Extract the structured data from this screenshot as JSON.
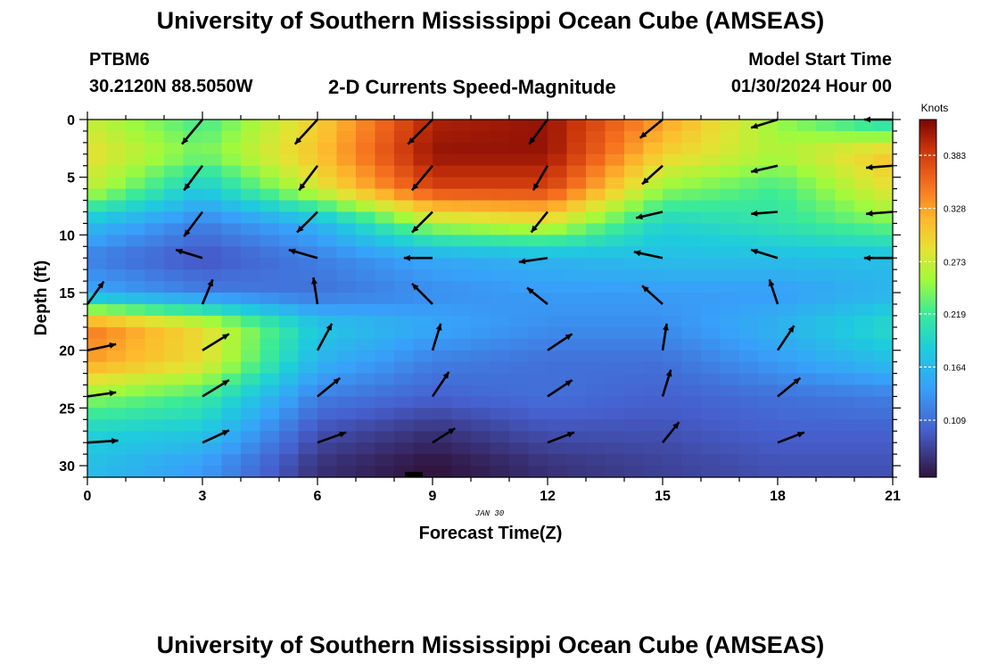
{
  "header": {
    "title": "University of Southern Mississippi Ocean Cube (AMSEAS)",
    "station": "PTBM6",
    "coords": "30.2120N  88.5050W",
    "subtitle": "2-D Currents Speed-Magnitude",
    "start_label": "Model Start Time",
    "start_value": "01/30/2024 Hour 00"
  },
  "footer": {
    "title": "University of Southern Mississippi Ocean Cube (AMSEAS)"
  },
  "chart_data": {
    "type": "heatmap",
    "title": "2-D Currents Speed-Magnitude",
    "xlabel": "Forecast Time(Z)",
    "ylabel": "Depth (ft)",
    "date_label": "JAN 30",
    "xlim": [
      0,
      21
    ],
    "ylim": [
      31,
      0
    ],
    "x_ticks": [
      0,
      3,
      6,
      9,
      12,
      15,
      18,
      21
    ],
    "y_ticks": [
      0,
      5,
      10,
      15,
      20,
      25,
      30
    ],
    "colorbar": {
      "label": "Knots",
      "range": [
        0.05,
        0.42
      ],
      "ticks": [
        0.109,
        0.164,
        0.219,
        0.273,
        0.328,
        0.383
      ]
    },
    "speed_grid": {
      "times": [
        0,
        3,
        6,
        9,
        12,
        15,
        18,
        21
      ],
      "depths": [
        0,
        3,
        6,
        9,
        12,
        15,
        18,
        21,
        24,
        27,
        30
      ],
      "values": [
        [
          0.27,
          0.22,
          0.3,
          0.4,
          0.41,
          0.33,
          0.25,
          0.19
        ],
        [
          0.29,
          0.24,
          0.31,
          0.41,
          0.41,
          0.3,
          0.26,
          0.31
        ],
        [
          0.27,
          0.18,
          0.28,
          0.38,
          0.38,
          0.25,
          0.22,
          0.29
        ],
        [
          0.17,
          0.12,
          0.16,
          0.26,
          0.28,
          0.19,
          0.21,
          0.24
        ],
        [
          0.12,
          0.09,
          0.12,
          0.15,
          0.16,
          0.17,
          0.17,
          0.17
        ],
        [
          0.15,
          0.12,
          0.11,
          0.13,
          0.14,
          0.14,
          0.14,
          0.16
        ],
        [
          0.35,
          0.29,
          0.18,
          0.15,
          0.13,
          0.13,
          0.16,
          0.2
        ],
        [
          0.33,
          0.29,
          0.16,
          0.12,
          0.11,
          0.11,
          0.14,
          0.17
        ],
        [
          0.25,
          0.22,
          0.12,
          0.1,
          0.11,
          0.1,
          0.11,
          0.12
        ],
        [
          0.19,
          0.18,
          0.09,
          0.07,
          0.09,
          0.09,
          0.1,
          0.1
        ],
        [
          0.17,
          0.14,
          0.07,
          0.05,
          0.07,
          0.08,
          0.09,
          0.09
        ]
      ]
    },
    "vectors": {
      "times": [
        0,
        3,
        6,
        9,
        12,
        15,
        18,
        21
      ],
      "depths": [
        0,
        4,
        8,
        12,
        16,
        20,
        24,
        28
      ],
      "u": [
        [
          0.0,
          -0.2,
          -0.22,
          -0.24,
          -0.18,
          -0.22,
          -0.26,
          -0.28
        ],
        [
          0.0,
          -0.18,
          -0.18,
          -0.2,
          -0.14,
          -0.2,
          -0.26,
          -0.26
        ],
        [
          0.0,
          -0.18,
          -0.2,
          -0.2,
          -0.16,
          -0.26,
          -0.26,
          -0.26
        ],
        [
          0.0,
          -0.26,
          -0.28,
          -0.28,
          -0.28,
          -0.28,
          -0.26,
          -0.28
        ],
        [
          0.16,
          0.1,
          -0.04,
          -0.2,
          -0.2,
          -0.2,
          -0.08,
          0.0
        ],
        [
          0.28,
          0.26,
          0.14,
          0.08,
          0.24,
          0.04,
          0.16,
          0.0
        ],
        [
          0.28,
          0.26,
          0.22,
          0.16,
          0.24,
          0.08,
          0.22,
          0.0
        ],
        [
          0.3,
          0.26,
          0.28,
          0.22,
          0.26,
          0.16,
          0.26,
          0.0
        ]
      ],
      "v": [
        [
          0.0,
          -0.24,
          -0.24,
          -0.24,
          -0.24,
          -0.18,
          -0.08,
          0.0
        ],
        [
          0.0,
          -0.24,
          -0.24,
          -0.24,
          -0.24,
          -0.18,
          -0.06,
          -0.02
        ],
        [
          0.0,
          -0.24,
          -0.2,
          -0.2,
          -0.2,
          -0.06,
          -0.02,
          -0.02
        ],
        [
          0.0,
          0.08,
          0.08,
          0.0,
          -0.04,
          0.06,
          0.08,
          0.0
        ],
        [
          0.22,
          0.24,
          0.26,
          0.2,
          0.16,
          0.18,
          0.24,
          0.0
        ],
        [
          0.06,
          0.16,
          0.26,
          0.26,
          0.16,
          0.26,
          0.24,
          0.0
        ],
        [
          0.04,
          0.16,
          0.18,
          0.24,
          0.16,
          0.26,
          0.18,
          0.0
        ],
        [
          0.02,
          0.12,
          0.1,
          0.14,
          0.1,
          0.2,
          0.1,
          0.0
        ]
      ]
    }
  }
}
